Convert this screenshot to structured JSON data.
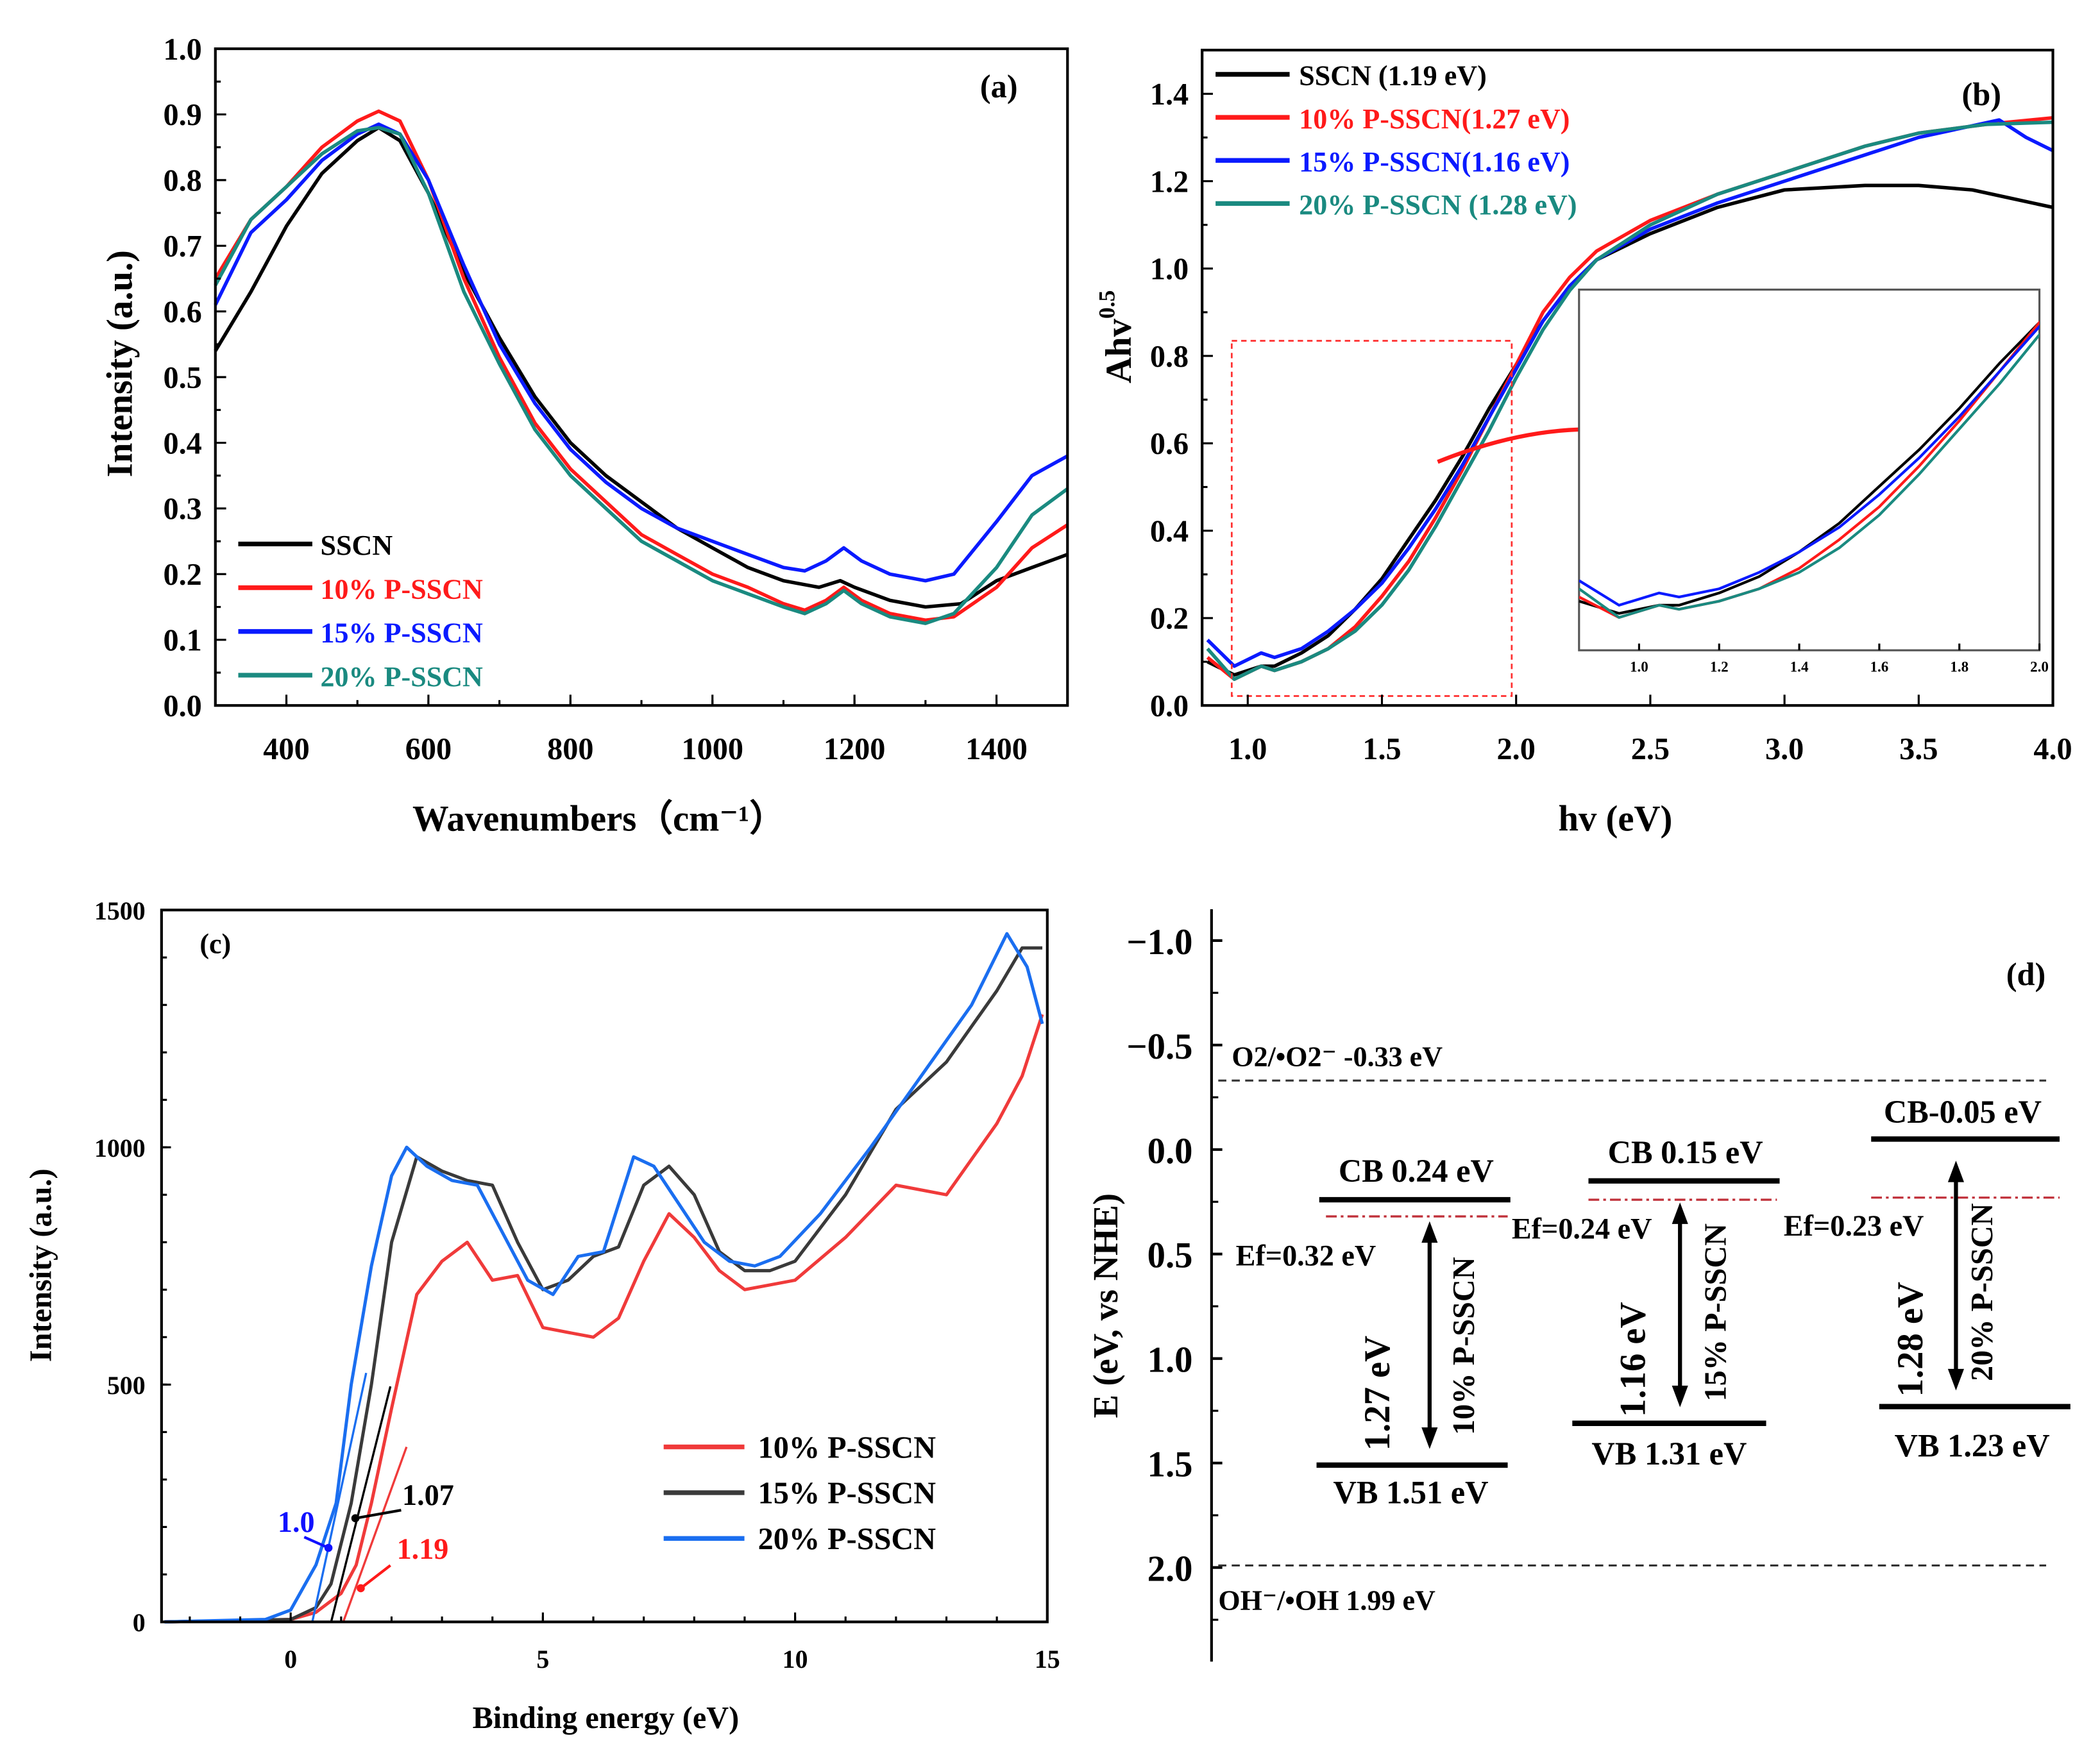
{
  "colors": {
    "SSCN": "#000000",
    "10% P-SSCN": "#ff1a1a",
    "15% P-SSCN": "#0a1aff",
    "20% P-SSCN": "#1a8a80",
    "gray15": "#3a3a3a",
    "blue20c": "#1a6ef0"
  },
  "chart_data": [
    {
      "panel": "(a)",
      "type": "line",
      "xlabel": "Wavenumbers（cm⁻¹）",
      "ylabel": "Intensity (a.u.)",
      "xlim": [
        300,
        1500
      ],
      "ylim": [
        0,
        1.0
      ],
      "xticks": [
        400,
        600,
        800,
        1000,
        1200,
        1400
      ],
      "yticks": [
        "0.0",
        "0.1",
        "0.2",
        "0.3",
        "0.4",
        "0.5",
        "0.6",
        "0.7",
        "0.8",
        "0.9",
        "1.0"
      ],
      "legend": "bottom-left",
      "series": [
        {
          "name": "SSCN",
          "x": [
            300,
            350,
            400,
            450,
            500,
            530,
            560,
            600,
            650,
            700,
            750,
            800,
            850,
            900,
            950,
            1000,
            1050,
            1100,
            1150,
            1180,
            1200,
            1250,
            1300,
            1350,
            1400,
            1450,
            1500
          ],
          "y": [
            0.54,
            0.63,
            0.73,
            0.81,
            0.86,
            0.88,
            0.86,
            0.78,
            0.66,
            0.56,
            0.47,
            0.4,
            0.35,
            0.31,
            0.27,
            0.24,
            0.21,
            0.19,
            0.18,
            0.19,
            0.18,
            0.16,
            0.15,
            0.155,
            0.19,
            0.21,
            0.23
          ]
        },
        {
          "name": "10% P-SSCN",
          "x": [
            300,
            350,
            400,
            450,
            500,
            530,
            560,
            600,
            650,
            700,
            750,
            800,
            850,
            900,
            950,
            1000,
            1050,
            1100,
            1130,
            1160,
            1185,
            1210,
            1250,
            1300,
            1340,
            1400,
            1450,
            1500
          ],
          "y": [
            0.65,
            0.74,
            0.79,
            0.85,
            0.89,
            0.905,
            0.89,
            0.8,
            0.65,
            0.53,
            0.43,
            0.36,
            0.31,
            0.26,
            0.23,
            0.2,
            0.18,
            0.155,
            0.145,
            0.16,
            0.18,
            0.16,
            0.14,
            0.13,
            0.135,
            0.18,
            0.24,
            0.275
          ]
        },
        {
          "name": "15% P-SSCN",
          "x": [
            300,
            350,
            400,
            450,
            500,
            530,
            560,
            600,
            650,
            700,
            750,
            800,
            850,
            900,
            950,
            1000,
            1050,
            1100,
            1130,
            1160,
            1185,
            1210,
            1250,
            1300,
            1340,
            1400,
            1450,
            1500
          ],
          "y": [
            0.61,
            0.72,
            0.77,
            0.83,
            0.87,
            0.885,
            0.87,
            0.8,
            0.67,
            0.55,
            0.46,
            0.39,
            0.34,
            0.3,
            0.27,
            0.25,
            0.23,
            0.21,
            0.205,
            0.22,
            0.24,
            0.22,
            0.2,
            0.19,
            0.2,
            0.28,
            0.35,
            0.38
          ]
        },
        {
          "name": "20% P-SSCN",
          "x": [
            300,
            350,
            400,
            450,
            500,
            530,
            560,
            600,
            650,
            700,
            750,
            800,
            850,
            900,
            950,
            1000,
            1050,
            1100,
            1130,
            1160,
            1185,
            1210,
            1250,
            1300,
            1340,
            1400,
            1450,
            1500
          ],
          "y": [
            0.64,
            0.74,
            0.79,
            0.84,
            0.875,
            0.88,
            0.87,
            0.78,
            0.63,
            0.52,
            0.42,
            0.35,
            0.3,
            0.25,
            0.22,
            0.19,
            0.17,
            0.15,
            0.14,
            0.155,
            0.175,
            0.155,
            0.135,
            0.125,
            0.14,
            0.21,
            0.29,
            0.33
          ]
        }
      ]
    },
    {
      "panel": "(b)",
      "type": "line",
      "xlabel": "hv (eV)",
      "ylabel": "Ahv",
      "ylabel_sup": "0.5",
      "xlim": [
        0.83,
        4.0
      ],
      "ylim": [
        0,
        1.5
      ],
      "xticks": [
        "1.0",
        "1.5",
        "2.0",
        "2.5",
        "3.0",
        "3.5",
        "4.0"
      ],
      "yticks": [
        "0.0",
        "0.2",
        "0.4",
        "0.6",
        "0.8",
        "1.0",
        "1.2",
        "1.4"
      ],
      "legend": "top-left",
      "legend_labels": [
        "SSCN      (1.19 eV)",
        "10% P-SSCN(1.27 eV)",
        "15% P-SSCN(1.16 eV)",
        "20% P-SSCN (1.28 eV)"
      ],
      "inset": {
        "xlim": [
          0.85,
          2.0
        ],
        "ylim": [
          -0.02,
          0.86
        ],
        "xticks": [
          "1.0",
          "1.2",
          "1.4",
          "1.6",
          "1.8",
          "2.0"
        ]
      },
      "series": [
        {
          "name": "SSCN",
          "x": [
            0.85,
            0.95,
            1.05,
            1.1,
            1.2,
            1.3,
            1.4,
            1.5,
            1.6,
            1.7,
            1.8,
            1.9,
            2.0,
            2.1,
            2.2,
            2.3,
            2.5,
            2.75,
            3.0,
            3.3,
            3.5,
            3.7,
            3.85,
            4.0
          ],
          "y": [
            0.1,
            0.07,
            0.09,
            0.09,
            0.12,
            0.16,
            0.22,
            0.29,
            0.38,
            0.47,
            0.57,
            0.68,
            0.78,
            0.88,
            0.96,
            1.02,
            1.08,
            1.14,
            1.18,
            1.19,
            1.19,
            1.18,
            1.16,
            1.14
          ]
        },
        {
          "name": "10% P-SSCN",
          "x": [
            0.85,
            0.95,
            1.05,
            1.1,
            1.2,
            1.3,
            1.4,
            1.5,
            1.6,
            1.7,
            1.8,
            1.9,
            2.0,
            2.1,
            2.2,
            2.3,
            2.5,
            2.75,
            3.0,
            3.3,
            3.5,
            3.75,
            4.0
          ],
          "y": [
            0.11,
            0.06,
            0.09,
            0.08,
            0.1,
            0.13,
            0.18,
            0.25,
            0.33,
            0.43,
            0.54,
            0.66,
            0.78,
            0.9,
            0.98,
            1.04,
            1.11,
            1.17,
            1.22,
            1.28,
            1.31,
            1.33,
            1.345
          ]
        },
        {
          "name": "15% P-SSCN",
          "x": [
            0.85,
            0.95,
            1.05,
            1.1,
            1.2,
            1.3,
            1.4,
            1.5,
            1.6,
            1.7,
            1.8,
            1.9,
            2.0,
            2.1,
            2.2,
            2.3,
            2.5,
            2.75,
            3.0,
            3.3,
            3.5,
            3.8,
            3.9,
            4.0
          ],
          "y": [
            0.15,
            0.09,
            0.12,
            0.11,
            0.13,
            0.17,
            0.22,
            0.28,
            0.36,
            0.45,
            0.55,
            0.66,
            0.77,
            0.88,
            0.96,
            1.02,
            1.09,
            1.15,
            1.2,
            1.26,
            1.3,
            1.34,
            1.3,
            1.27
          ]
        },
        {
          "name": "20% P-SSCN",
          "x": [
            0.85,
            0.95,
            1.05,
            1.1,
            1.2,
            1.3,
            1.4,
            1.5,
            1.6,
            1.7,
            1.8,
            1.9,
            2.0,
            2.1,
            2.2,
            2.3,
            2.5,
            2.75,
            3.0,
            3.3,
            3.5,
            3.75,
            4.0
          ],
          "y": [
            0.13,
            0.06,
            0.09,
            0.08,
            0.1,
            0.13,
            0.17,
            0.23,
            0.31,
            0.41,
            0.52,
            0.63,
            0.75,
            0.86,
            0.95,
            1.02,
            1.1,
            1.17,
            1.22,
            1.28,
            1.31,
            1.33,
            1.335
          ]
        }
      ]
    },
    {
      "panel": "(c)",
      "type": "line",
      "xlabel": "Binding energy (eV)",
      "ylabel": "Intensity (a.u.)",
      "xlim": [
        -2.56,
        15
      ],
      "ylim": [
        0,
        1500
      ],
      "xticks": [
        "0",
        "5",
        "10",
        "15"
      ],
      "yticks": [
        "0",
        "500",
        "1000",
        "1500"
      ],
      "legend": "bottom-right",
      "annotations": [
        {
          "text": "1.0",
          "series": "20% P-SSCN",
          "value": 1.0
        },
        {
          "text": "1.07",
          "series": "15% P-SSCN",
          "value": 1.07
        },
        {
          "text": "1.19",
          "series": "10% P-SSCN",
          "value": 1.19
        }
      ],
      "series": [
        {
          "name": "10% P-SSCN",
          "x": [
            -2.5,
            0,
            0.5,
            1.0,
            1.3,
            1.6,
            2.0,
            2.5,
            3.0,
            3.5,
            4.0,
            4.5,
            5.0,
            5.5,
            6.0,
            6.5,
            7.0,
            7.5,
            8.0,
            8.5,
            9.0,
            9.5,
            10.0,
            11,
            12,
            13,
            14,
            14.5,
            14.9
          ],
          "y": [
            0,
            5,
            20,
            60,
            120,
            250,
            450,
            690,
            760,
            800,
            720,
            730,
            620,
            610,
            600,
            640,
            760,
            860,
            810,
            740,
            700,
            710,
            720,
            810,
            920,
            900,
            1050,
            1150,
            1280
          ]
        },
        {
          "name": "15% P-SSCN",
          "x": [
            -2.5,
            0,
            0.5,
            0.8,
            1.2,
            1.6,
            2.0,
            2.5,
            3.0,
            3.5,
            4.0,
            4.5,
            5.0,
            5.5,
            6.0,
            6.5,
            7.0,
            7.5,
            8.0,
            8.5,
            9.0,
            9.5,
            10.0,
            11,
            12,
            13,
            14,
            14.5,
            14.9
          ],
          "y": [
            0,
            5,
            30,
            80,
            250,
            500,
            800,
            980,
            950,
            930,
            920,
            800,
            700,
            720,
            770,
            790,
            920,
            960,
            900,
            780,
            740,
            740,
            760,
            900,
            1080,
            1180,
            1330,
            1420,
            1420
          ]
        },
        {
          "name": "20% P-SSCN",
          "x": [
            -2.5,
            -0.5,
            0,
            0.5,
            0.9,
            1.2,
            1.6,
            2.0,
            2.3,
            2.7,
            3.2,
            3.7,
            4.2,
            4.7,
            5.2,
            5.7,
            6.2,
            6.8,
            7.2,
            7.7,
            8.2,
            8.7,
            9.2,
            9.7,
            10.5,
            11.5,
            12.5,
            13.5,
            14.2,
            14.6,
            14.9
          ],
          "y": [
            0,
            5,
            25,
            120,
            250,
            500,
            750,
            940,
            1000,
            960,
            930,
            920,
            820,
            720,
            690,
            770,
            780,
            980,
            960,
            880,
            800,
            760,
            750,
            770,
            860,
            1000,
            1150,
            1300,
            1450,
            1380,
            1260
          ]
        }
      ]
    },
    {
      "panel": "(d)",
      "type": "diagram",
      "ylabel": "E (eV, vs NHE)",
      "ylim": [
        -1.15,
        2.45
      ],
      "yticks": [
        "-1.0",
        "-0.5",
        "0.0",
        "0.5",
        "1.0",
        "1.5",
        "2.0"
      ],
      "references": [
        {
          "label": "O2/•O2⁻ -0.33 eV",
          "value": -0.33
        },
        {
          "label": "OH⁻/•OH  1.99 eV",
          "value": 1.99
        }
      ],
      "samples": [
        {
          "name": "10% P-SSCN",
          "cb": 0.24,
          "vb": 1.51,
          "ef": 0.32,
          "gap": 1.27,
          "cb_label": "CB 0.24 eV",
          "vb_label": "VB 1.51 eV",
          "ef_label": "Ef=0.32 eV",
          "gap_label": "1.27 eV"
        },
        {
          "name": "15% P-SSCN",
          "cb": 0.15,
          "vb": 1.31,
          "ef": 0.24,
          "gap": 1.16,
          "cb_label": "CB 0.15 eV",
          "vb_label": "VB 1.31 eV",
          "ef_label": "Ef=0.24 eV",
          "gap_label": "1.16 eV"
        },
        {
          "name": "20% P-SSCN",
          "cb": -0.05,
          "vb": 1.23,
          "ef": 0.23,
          "gap": 1.28,
          "cb_label": "CB-0.05 eV",
          "vb_label": "VB 1.23 eV",
          "ef_label": "Ef=0.23 eV",
          "gap_label": "1.28 eV"
        }
      ]
    }
  ]
}
